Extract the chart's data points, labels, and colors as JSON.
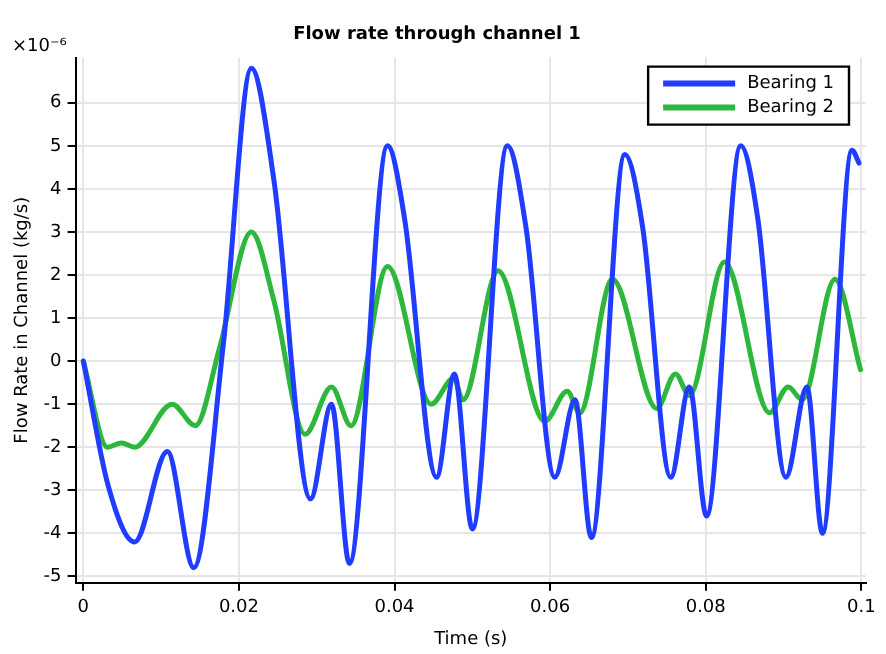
{
  "chart_data": {
    "type": "line",
    "title": "Flow rate through channel 1",
    "xlabel": "Time (s)",
    "ylabel": "Flow Rate in Channel (kg/s)",
    "annotations": [
      "×10⁻⁶"
    ],
    "xlim": [
      -0.001,
      0.1006
    ],
    "xticks": [
      0,
      0.02,
      0.04,
      0.06,
      0.08,
      0.1
    ],
    "ylim": [
      -5.15,
      7.05
    ],
    "yticks": [
      -5,
      -4,
      -3,
      -2,
      -1,
      0,
      1,
      2,
      3,
      4,
      5,
      6
    ],
    "grid": true,
    "legend": "top right",
    "line_style": "solid",
    "marker": "none",
    "series": [
      {
        "name": "Bearing 1",
        "color": "#1f3cff",
        "x": [
          0,
          0.0032,
          0.0066,
          0.0108,
          0.0142,
          0.018,
          0.0216,
          0.0245,
          0.0292,
          0.0319,
          0.0342,
          0.0391,
          0.0413,
          0.0454,
          0.0477,
          0.05,
          0.0545,
          0.0569,
          0.0606,
          0.0632,
          0.0653,
          0.0696,
          0.0719,
          0.0755,
          0.0779,
          0.0801,
          0.0845,
          0.0867,
          0.0903,
          0.093,
          0.095,
          0.0988,
          0.0997
        ],
        "values": [
          0,
          -2.9,
          -4.2,
          -2.1,
          -4.8,
          0.4,
          6.8,
          4.2,
          -3.2,
          -1,
          -4.7,
          5,
          3.3,
          -2.7,
          -0.3,
          -3.9,
          5,
          3.1,
          -2.7,
          -0.9,
          -4.1,
          4.8,
          3.1,
          -2.7,
          -0.6,
          -3.6,
          5,
          3.3,
          -2.7,
          -0.6,
          -4,
          4.9,
          4.6
        ]
      },
      {
        "name": "Bearing 2",
        "color": "#2db83d",
        "x": [
          0,
          0.0031,
          0.0049,
          0.0066,
          0.0114,
          0.0144,
          0.0175,
          0.0216,
          0.0245,
          0.0285,
          0.0319,
          0.0344,
          0.0391,
          0.0447,
          0.0476,
          0.0488,
          0.0533,
          0.0593,
          0.0622,
          0.0638,
          0.068,
          0.0737,
          0.0761,
          0.0779,
          0.0824,
          0.0882,
          0.0906,
          0.0924,
          0.0966,
          0.0999
        ],
        "values": [
          0,
          -2,
          -1.9,
          -2,
          -1,
          -1.5,
          0.3,
          3,
          1.4,
          -1.7,
          -0.6,
          -1.5,
          2.2,
          -1,
          -0.4,
          -0.9,
          2.1,
          -1.4,
          -0.7,
          -1.2,
          1.9,
          -1.1,
          -0.3,
          -0.8,
          2.3,
          -1.2,
          -0.6,
          -0.9,
          1.9,
          -0.2
        ]
      }
    ]
  }
}
